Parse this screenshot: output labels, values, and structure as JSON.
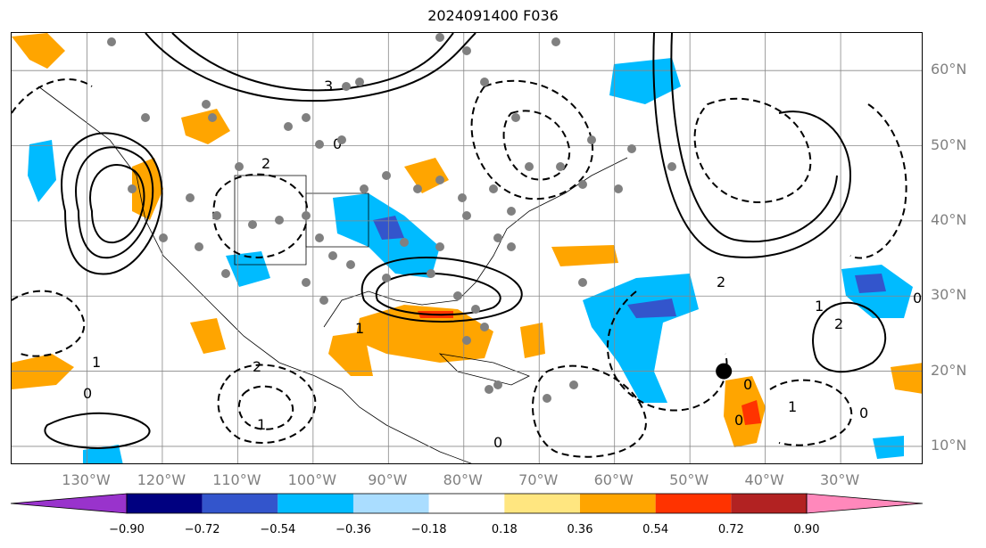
{
  "title": "2024091400 F036",
  "map": {
    "lon_range": [
      -140,
      -19
    ],
    "lat_range": [
      7.5,
      65
    ],
    "gridlines": true,
    "lat_labels": [
      {
        "lat": 60,
        "text": "60°N"
      },
      {
        "lat": 50,
        "text": "50°N"
      },
      {
        "lat": 40,
        "text": "40°N"
      },
      {
        "lat": 30,
        "text": "30°N"
      },
      {
        "lat": 20,
        "text": "20°N"
      },
      {
        "lat": 10,
        "text": "10°N"
      }
    ],
    "lon_labels": [
      {
        "lon": -130,
        "text": "130°W"
      },
      {
        "lon": -120,
        "text": "120°W"
      },
      {
        "lon": -110,
        "text": "110°W"
      },
      {
        "lon": -100,
        "text": "100°W"
      },
      {
        "lon": -90,
        "text": "90°W"
      },
      {
        "lon": -80,
        "text": "80°W"
      },
      {
        "lon": -70,
        "text": "70°W"
      },
      {
        "lon": -60,
        "text": "60°W"
      },
      {
        "lon": -50,
        "text": "50°W"
      },
      {
        "lon": -40,
        "text": "40°W"
      },
      {
        "lon": -30,
        "text": "30°W"
      }
    ],
    "storm_marker": {
      "lon": -45.5,
      "lat": 20
    }
  },
  "colorbar": {
    "colors": [
      "#9933cc",
      "#000080",
      "#3355cc",
      "#00bbff",
      "#aaddff",
      "#ffffff",
      "#ffe680",
      "#ffa500",
      "#ff3300",
      "#b22222",
      "#ff88bb"
    ],
    "tick_labels": [
      "−0.90",
      "−0.72",
      "−0.54",
      "−0.36",
      "−0.18",
      "0.18",
      "0.36",
      "0.54",
      "0.72",
      "0.90"
    ],
    "extend": "both"
  },
  "colors": {
    "positive_contour": "#000000",
    "negative_contour": "#000000",
    "station_dot": "#808080",
    "storm_marker": "#000000",
    "axis_label": "#808080"
  }
}
